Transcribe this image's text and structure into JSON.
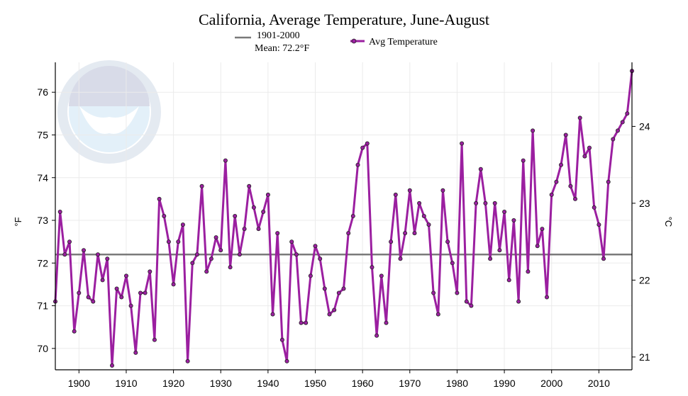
{
  "chart_data": {
    "type": "line",
    "title": "California, Average Temperature, June-August",
    "xlabel": "",
    "ylabel_left": "°F",
    "ylabel_right": "°C",
    "grid": true,
    "legend_position": "top-center",
    "legend": {
      "baseline_label_line1": "1901-2000",
      "baseline_label_line2": "Mean: 72.2°F",
      "series_label": "Avg Temperature"
    },
    "xlim": [
      1895,
      2017
    ],
    "ylim_f": [
      69.5,
      76.7
    ],
    "x_ticks": [
      1900,
      1910,
      1920,
      1930,
      1940,
      1950,
      1960,
      1970,
      1980,
      1990,
      2000,
      2010
    ],
    "y_ticks_f": [
      70,
      71,
      72,
      73,
      74,
      75,
      76
    ],
    "y_ticks_c": [
      21,
      22,
      23,
      24
    ],
    "baseline": {
      "name": "1901-2000 Mean",
      "value": 72.2
    },
    "colors": {
      "series": "#9b1fa0",
      "baseline": "#7a7a7a",
      "marker_stroke": "#222222"
    },
    "series": [
      {
        "name": "Avg Temperature",
        "x": [
          1895,
          1896,
          1897,
          1898,
          1899,
          1900,
          1901,
          1902,
          1903,
          1904,
          1905,
          1906,
          1907,
          1908,
          1909,
          1910,
          1911,
          1912,
          1913,
          1914,
          1915,
          1916,
          1917,
          1918,
          1919,
          1920,
          1921,
          1922,
          1923,
          1924,
          1925,
          1926,
          1927,
          1928,
          1929,
          1930,
          1931,
          1932,
          1933,
          1934,
          1935,
          1936,
          1937,
          1938,
          1939,
          1940,
          1941,
          1942,
          1943,
          1944,
          1945,
          1946,
          1947,
          1948,
          1949,
          1950,
          1951,
          1952,
          1953,
          1954,
          1955,
          1956,
          1957,
          1958,
          1959,
          1960,
          1961,
          1962,
          1963,
          1964,
          1965,
          1966,
          1967,
          1968,
          1969,
          1970,
          1971,
          1972,
          1973,
          1974,
          1975,
          1976,
          1977,
          1978,
          1979,
          1980,
          1981,
          1982,
          1983,
          1984,
          1985,
          1986,
          1987,
          1988,
          1989,
          1990,
          1991,
          1992,
          1993,
          1994,
          1995,
          1996,
          1997,
          1998,
          1999,
          2000,
          2001,
          2002,
          2003,
          2004,
          2005,
          2006,
          2007,
          2008,
          2009,
          2010,
          2011,
          2012,
          2013,
          2014,
          2015,
          2016,
          2017
        ],
        "values": [
          71.1,
          73.2,
          72.2,
          72.5,
          70.4,
          71.3,
          72.3,
          71.2,
          71.1,
          72.2,
          71.6,
          72.1,
          69.6,
          71.4,
          71.2,
          71.7,
          71.0,
          69.9,
          71.3,
          71.3,
          71.8,
          70.2,
          73.5,
          73.1,
          72.5,
          71.5,
          72.5,
          72.9,
          69.7,
          72.0,
          72.2,
          73.8,
          71.8,
          72.1,
          72.6,
          72.3,
          74.4,
          71.9,
          73.1,
          72.2,
          72.8,
          73.8,
          73.3,
          72.8,
          73.2,
          73.6,
          70.8,
          72.7,
          70.2,
          69.7,
          72.5,
          72.2,
          70.6,
          70.6,
          71.7,
          72.4,
          72.1,
          71.4,
          70.8,
          70.9,
          71.3,
          71.4,
          72.7,
          73.1,
          74.3,
          74.7,
          74.8,
          71.9,
          70.3,
          71.7,
          70.6,
          72.5,
          73.6,
          72.1,
          72.7,
          73.7,
          72.7,
          73.4,
          73.1,
          72.9,
          71.3,
          70.8,
          73.7,
          72.5,
          72.0,
          71.3,
          74.8,
          71.1,
          71.0,
          73.4,
          74.2,
          73.4,
          72.1,
          73.4,
          72.3,
          73.2,
          71.6,
          73.0,
          71.1,
          74.4,
          71.8,
          75.1,
          72.4,
          72.8,
          71.2,
          73.6,
          73.9,
          74.3,
          75.0,
          73.8,
          73.5,
          75.4,
          74.5,
          74.7,
          73.3,
          72.9,
          72.1,
          73.9,
          74.9,
          75.1,
          75.3,
          75.5,
          76.5
        ]
      }
    ]
  }
}
